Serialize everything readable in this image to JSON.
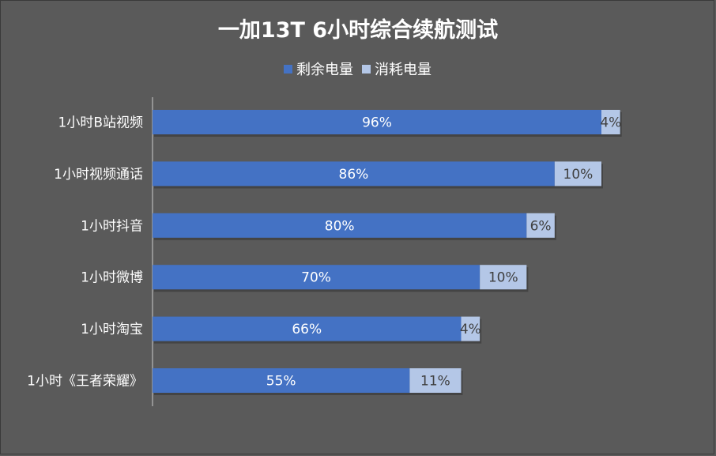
{
  "chart_data": {
    "type": "bar",
    "orientation": "horizontal",
    "stacked": true,
    "title": "一加13T 6小时综合续航测试",
    "categories": [
      "1小时B站视频",
      "1小时视频通话",
      "1小时抖音",
      "1小时微博",
      "1小时淘宝",
      "1小时《王者荣耀》"
    ],
    "series": [
      {
        "name": "剩余电量",
        "values": [
          96,
          86,
          80,
          70,
          66,
          55
        ],
        "labels": [
          "96%",
          "86%",
          "80%",
          "70%",
          "66%",
          "55%"
        ],
        "color": "#4472c4",
        "label_color": "#ffffff"
      },
      {
        "name": "消耗电量",
        "values": [
          4,
          10,
          6,
          10,
          4,
          11
        ],
        "labels": [
          "4%",
          "10%",
          "6%",
          "10%",
          "4%",
          "11%"
        ],
        "color": "#b4c7e7",
        "label_color": "#404040"
      }
    ],
    "xlim": [
      0,
      120
    ],
    "legend_position": "top",
    "grid": false,
    "background": "#5a5a5a"
  }
}
